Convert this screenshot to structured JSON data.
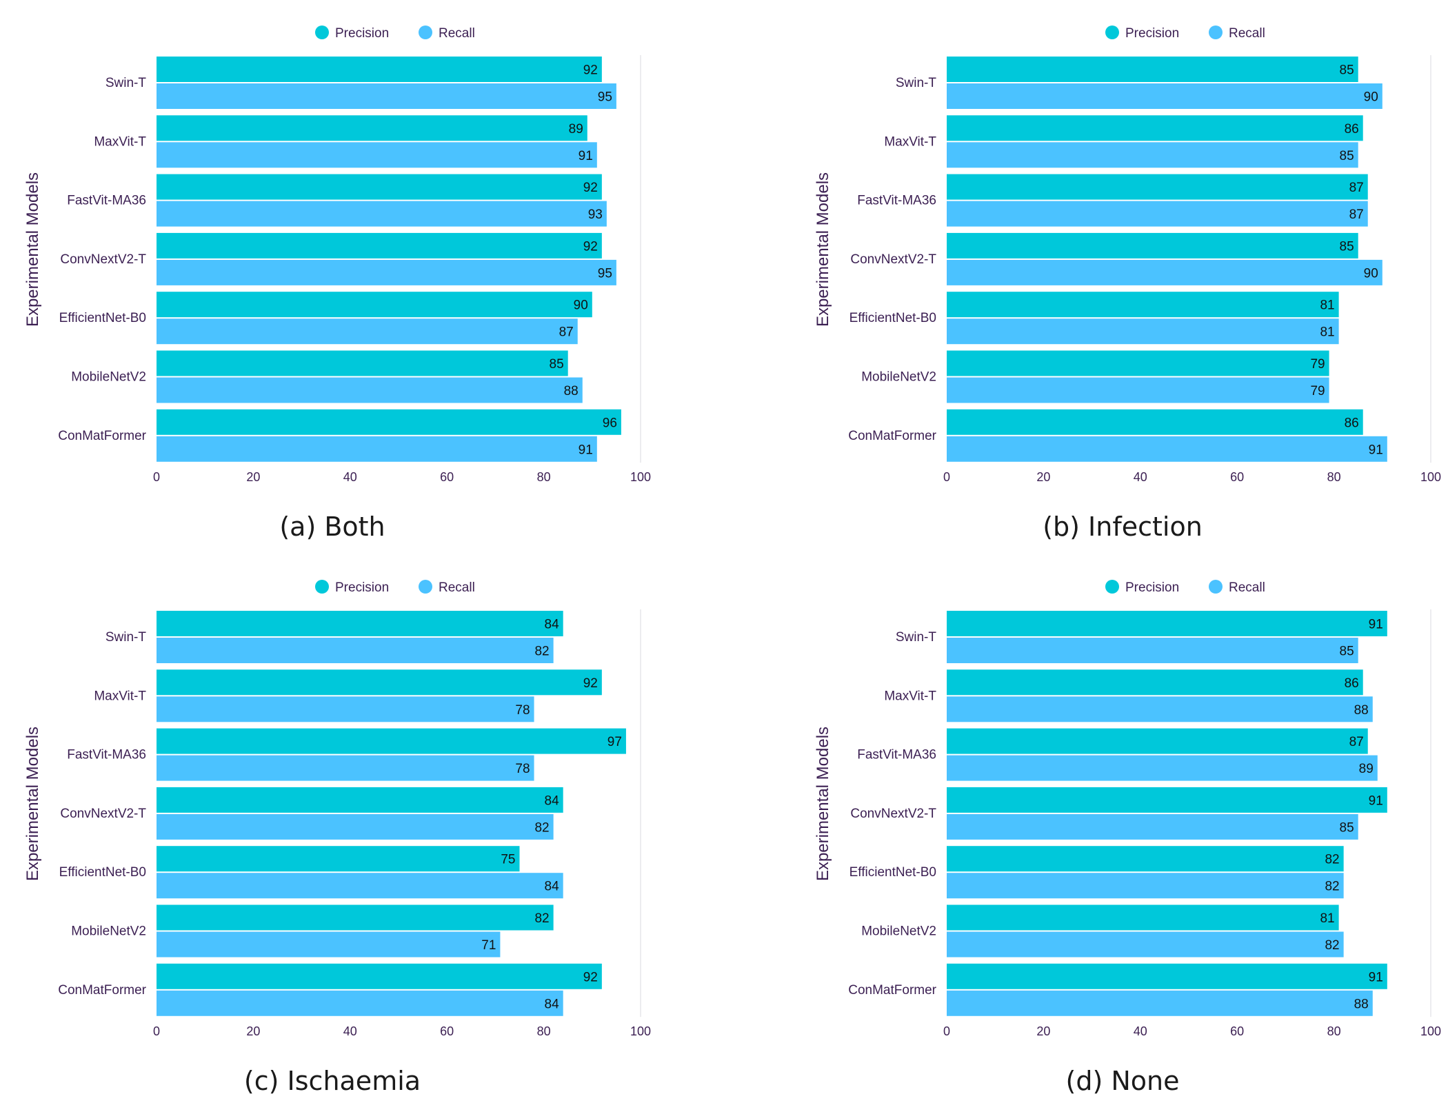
{
  "colors": {
    "precision": "#00C8DA",
    "recall": "#4BC2FF",
    "text": "#3B1F52",
    "grid": "#E6E6EA",
    "caption": "#1A1A1A"
  },
  "chart_data": [
    {
      "type": "bar",
      "orientation": "horizontal",
      "caption": "(a) Both",
      "ylabel": "Experimental Models",
      "xlabel": "",
      "xlim": [
        0,
        100
      ],
      "xticks": [
        0,
        20,
        40,
        60,
        80,
        100
      ],
      "legend_position": "top-center",
      "categories": [
        "Swin-T",
        "MaxVit-T",
        "FastVit-MA36",
        "ConvNextV2-T",
        "EfficientNet-B0",
        "MobileNetV2",
        "ConMatFormer"
      ],
      "series": [
        {
          "name": "Precision",
          "values": [
            92,
            89,
            92,
            92,
            90,
            85,
            96
          ]
        },
        {
          "name": "Recall",
          "values": [
            95,
            91,
            93,
            95,
            87,
            88,
            91
          ]
        }
      ]
    },
    {
      "type": "bar",
      "orientation": "horizontal",
      "caption": "(b) Infection",
      "ylabel": "Experimental Models",
      "xlabel": "",
      "xlim": [
        0,
        100
      ],
      "xticks": [
        0,
        20,
        40,
        60,
        80,
        100
      ],
      "legend_position": "top-center",
      "categories": [
        "Swin-T",
        "MaxVit-T",
        "FastVit-MA36",
        "ConvNextV2-T",
        "EfficientNet-B0",
        "MobileNetV2",
        "ConMatFormer"
      ],
      "series": [
        {
          "name": "Precision",
          "values": [
            85,
            86,
            87,
            85,
            81,
            79,
            86
          ]
        },
        {
          "name": "Recall",
          "values": [
            90,
            85,
            87,
            90,
            81,
            79,
            91
          ]
        }
      ]
    },
    {
      "type": "bar",
      "orientation": "horizontal",
      "caption": "(c) Ischaemia",
      "ylabel": "Experimental Models",
      "xlabel": "",
      "xlim": [
        0,
        100
      ],
      "xticks": [
        0,
        20,
        40,
        60,
        80,
        100
      ],
      "legend_position": "top-center",
      "categories": [
        "Swin-T",
        "MaxVit-T",
        "FastVit-MA36",
        "ConvNextV2-T",
        "EfficientNet-B0",
        "MobileNetV2",
        "ConMatFormer"
      ],
      "series": [
        {
          "name": "Precision",
          "values": [
            84,
            92,
            97,
            84,
            75,
            82,
            92
          ]
        },
        {
          "name": "Recall",
          "values": [
            82,
            78,
            78,
            82,
            84,
            71,
            84
          ]
        }
      ]
    },
    {
      "type": "bar",
      "orientation": "horizontal",
      "caption": "(d)  None",
      "ylabel": "Experimental Models",
      "xlabel": "",
      "xlim": [
        0,
        100
      ],
      "xticks": [
        0,
        20,
        40,
        60,
        80,
        100
      ],
      "legend_position": "top-center",
      "categories": [
        "Swin-T",
        "MaxVit-T",
        "FastVit-MA36",
        "ConvNextV2-T",
        "EfficientNet-B0",
        "MobileNetV2",
        "ConMatFormer"
      ],
      "series": [
        {
          "name": "Precision",
          "values": [
            91,
            86,
            87,
            91,
            82,
            81,
            91
          ]
        },
        {
          "name": "Recall",
          "values": [
            85,
            88,
            89,
            85,
            82,
            82,
            88
          ]
        }
      ]
    }
  ]
}
